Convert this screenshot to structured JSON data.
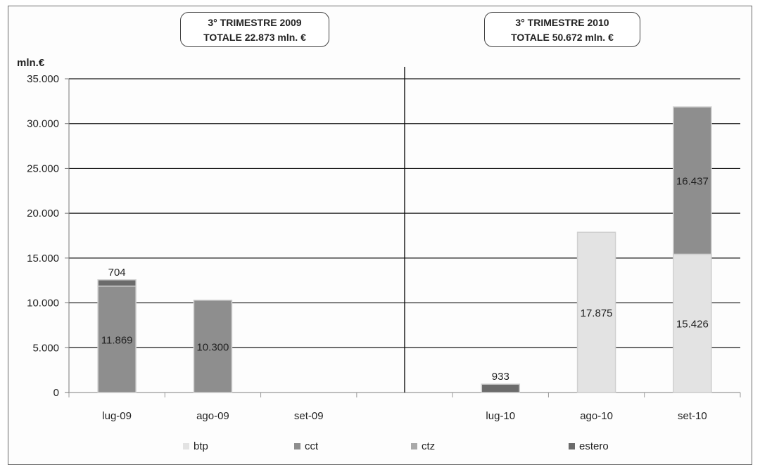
{
  "header_boxes": [
    {
      "line1": "3° TRIMESTRE  2009",
      "line2": "TOTALE 22.873 mln. €"
    },
    {
      "line1": "3° TRIMESTRE  2010",
      "line2": "TOTALE  50.672 mln. €"
    }
  ],
  "colors": {
    "btp": "#e3e3e3",
    "cct": "#8e8e8e",
    "ctz": "#a9a9a9",
    "estero": "#6b6b6b",
    "grid": "#1a1a1a"
  },
  "chart_data": {
    "type": "bar",
    "stacked": true,
    "ylabel": "mln.€",
    "ylim": [
      0,
      35000
    ],
    "yticks": [
      "0",
      "5.000",
      "10.000",
      "15.000",
      "20.000",
      "25.000",
      "30.000",
      "35.000"
    ],
    "ytick_values": [
      0,
      5000,
      10000,
      15000,
      20000,
      25000,
      30000,
      35000
    ],
    "categories": [
      "lug-09",
      "ago-09",
      "set-09",
      "",
      "lug-10",
      "ago-10",
      "set-10"
    ],
    "grid": true,
    "legend_position": "bottom",
    "series": [
      {
        "name": "btp",
        "values": [
          0,
          0,
          0,
          0,
          0,
          17875,
          15426
        ]
      },
      {
        "name": "cct",
        "values": [
          11869,
          10300,
          0,
          0,
          0,
          0,
          16437
        ]
      },
      {
        "name": "ctz",
        "values": [
          0,
          0,
          0,
          0,
          0,
          0,
          0
        ]
      },
      {
        "name": "estero",
        "values": [
          704,
          0,
          0,
          0,
          933,
          0,
          0
        ]
      }
    ],
    "data_labels": [
      {
        "category": 0,
        "series": "cct",
        "text": "11.869"
      },
      {
        "category": 0,
        "series": "estero",
        "text": "704"
      },
      {
        "category": 1,
        "series": "cct",
        "text": "10.300"
      },
      {
        "category": 4,
        "series": "estero",
        "text": "933"
      },
      {
        "category": 5,
        "series": "btp",
        "text": "17.875"
      },
      {
        "category": 6,
        "series": "btp",
        "text": "15.426"
      },
      {
        "category": 6,
        "series": "cct",
        "text": "16.437"
      }
    ]
  }
}
